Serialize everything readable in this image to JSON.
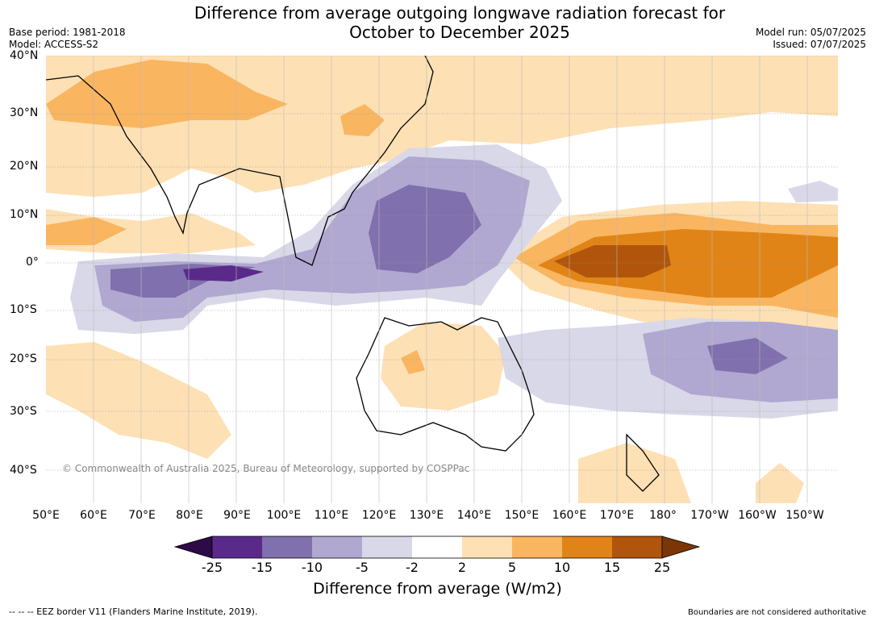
{
  "header": {
    "title_line1": "Difference from average outgoing longwave radiation forecast for",
    "title_line2": "October to December 2025",
    "base_period": "Base period: 1981-2018",
    "model": "Model: ACCESS-S2",
    "model_run": "Model run: 05/07/2025",
    "issued": "Issued: 07/07/2025"
  },
  "map": {
    "lat_labels": [
      "40°N",
      "30°N",
      "20°N",
      "10°N",
      "0°",
      "10°S",
      "20°S",
      "30°S",
      "40°S"
    ],
    "lon_labels": [
      "50°E",
      "60°E",
      "70°E",
      "80°E",
      "90°E",
      "100°E",
      "110°E",
      "120°E",
      "130°E",
      "140°E",
      "150°E",
      "160°E",
      "170°E",
      "180°",
      "170°W",
      "160°W",
      "150°W"
    ],
    "copyright": "© Commonwealth of Australia 2025, Bureau of Meteorology, supported by COSPPac"
  },
  "colorbar": {
    "ticks": [
      "-25",
      "-15",
      "-10",
      "-5",
      "-2",
      "2",
      "5",
      "10",
      "15",
      "25"
    ],
    "colors": [
      "#2d0a48",
      "#5a2a8a",
      "#8070ad",
      "#b0a8d0",
      "#d8d8e8",
      "#ffffff",
      "#fde0b4",
      "#f9b560",
      "#e08418",
      "#b0550b",
      "#7a3606"
    ],
    "label": "Difference from average (W/m2)"
  },
  "footer": {
    "eez_note": "-- -- -- EEZ border V11 (Flanders Marine Institute, 2019).",
    "boundaries_note": "Boundaries are not considered authoritative"
  }
}
